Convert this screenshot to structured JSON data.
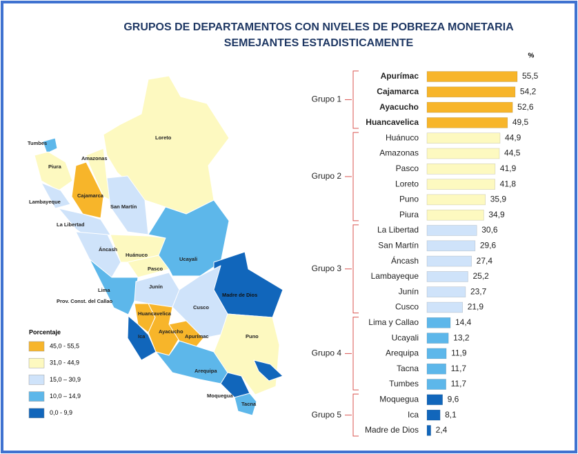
{
  "chart_data": {
    "type": "bar",
    "orientation": "horizontal",
    "title": [
      "GRUPOS DE DEPARTAMENTOS CON NIVELES DE POBREZA MONETARIA",
      "SEMEJANTES ESTADISTICAMENTE"
    ],
    "unit_label": "%",
    "series": [
      {
        "name": "Grupo 1",
        "color": "#f7b52a",
        "bold": true,
        "categories": [
          "Apurímac",
          "Cajamarca",
          "Ayacucho",
          "Huancavelica"
        ],
        "values": [
          55.5,
          54.2,
          52.6,
          49.5
        ],
        "value_labels": [
          "55,5",
          "54,2",
          "52,6",
          "49,5"
        ]
      },
      {
        "name": "Grupo 2",
        "color": "#fdf9c0",
        "bold": false,
        "categories": [
          "Huánuco",
          "Amazonas",
          "Pasco",
          "Loreto",
          "Puno",
          "Piura"
        ],
        "values": [
          44.9,
          44.5,
          41.9,
          41.8,
          35.9,
          34.9
        ],
        "value_labels": [
          "44,9",
          "44,5",
          "41,9",
          "41,8",
          "35,9",
          "34,9"
        ]
      },
      {
        "name": "Grupo 3",
        "color": "#cfe3fa",
        "bold": false,
        "categories": [
          "La Libertad",
          "San Martín",
          "Áncash",
          "Lambayeque",
          "Junín",
          "Cusco"
        ],
        "values": [
          30.6,
          29.6,
          27.4,
          25.2,
          23.7,
          21.9
        ],
        "value_labels": [
          "30,6",
          "29,6",
          "27,4",
          "25,2",
          "23,7",
          "21,9"
        ]
      },
      {
        "name": "Grupo 4",
        "color": "#5db7ea",
        "bold": false,
        "categories": [
          "Lima y Callao",
          "Ucayali",
          "Arequipa",
          "Tacna",
          "Tumbes"
        ],
        "values": [
          14.4,
          13.2,
          11.9,
          11.7,
          11.7
        ],
        "value_labels": [
          "14,4",
          "13,2",
          "11,9",
          "11,7",
          "11,7"
        ]
      },
      {
        "name": "Grupo 5",
        "color": "#1166bb",
        "bold": false,
        "categories": [
          "Moquegua",
          "Ica",
          "Madre de Dios"
        ],
        "values": [
          9.6,
          8.1,
          2.4
        ],
        "value_labels": [
          "9,6",
          "8,1",
          "2,4"
        ]
      }
    ]
  },
  "legend": {
    "title": "Porcentaje",
    "labels": [
      "45,0 - 55,5",
      "31,0 - 44,9",
      "15,0 – 30,9",
      "10,0 – 14,9",
      "0,0 - 9,9"
    ]
  },
  "map": {
    "labels": [
      "Tumbes",
      "Piura",
      "Lambayeque",
      "Amazonas",
      "Cajamarca",
      "Loreto",
      "San Martín",
      "La Libertad",
      "Áncash",
      "Huánuco",
      "Pasco",
      "Ucayali",
      "Lima",
      "Prov. Const. del Callao",
      "Junín",
      "Cusco",
      "Madre de Dios",
      "Huancavelica",
      "Ica",
      "Ayacucho",
      "Apurímac",
      "Arequipa",
      "Puno",
      "Moquegua",
      "Tacna"
    ]
  }
}
